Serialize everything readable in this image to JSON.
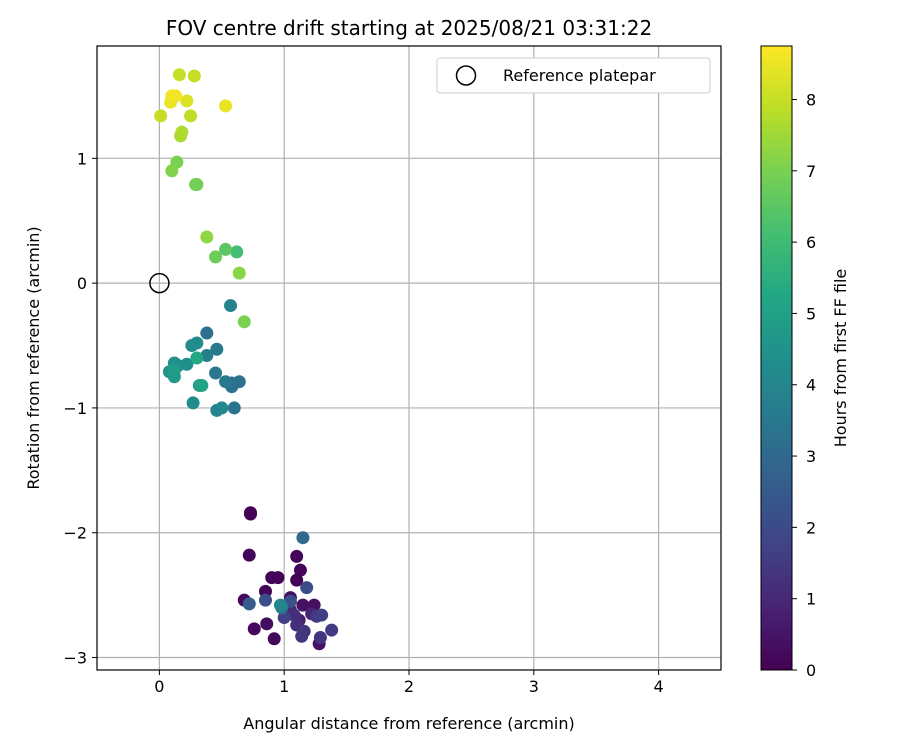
{
  "chart_data": {
    "type": "scatter",
    "title": "FOV centre drift starting at 2025/08/21 03:31:22",
    "xlabel": "Angular distance from reference (arcmin)",
    "ylabel": "Rotation from reference (arcmin)",
    "xlim": [
      -0.5,
      4.5
    ],
    "ylim": [
      -3.1,
      1.9
    ],
    "xticks": [
      0,
      1,
      2,
      3,
      4
    ],
    "yticks": [
      -3,
      -2,
      -1,
      0,
      1
    ],
    "grid": true,
    "legend": {
      "placement": "top-right",
      "entries": [
        "Reference platepar"
      ]
    },
    "colorbar": {
      "label": "Hours from first FF file",
      "min": 0,
      "max": 8.75,
      "ticks": [
        0,
        1,
        2,
        3,
        4,
        5,
        6,
        7,
        8
      ],
      "colormap": "viridis"
    },
    "reference": {
      "x": 0,
      "y": 0,
      "label": "Reference platepar"
    },
    "points": [
      {
        "x": 0.73,
        "y": -1.84,
        "t": 0.05
      },
      {
        "x": 0.73,
        "y": -1.85,
        "t": 0.05
      },
      {
        "x": 0.72,
        "y": -2.18,
        "t": 0.1
      },
      {
        "x": 1.1,
        "y": -2.19,
        "t": 0.1
      },
      {
        "x": 1.13,
        "y": -2.3,
        "t": 0.1
      },
      {
        "x": 1.1,
        "y": -2.38,
        "t": 0.1
      },
      {
        "x": 0.9,
        "y": -2.36,
        "t": 0.1
      },
      {
        "x": 0.95,
        "y": -2.36,
        "t": 0.1
      },
      {
        "x": 0.85,
        "y": -2.47,
        "t": 0.1
      },
      {
        "x": 0.68,
        "y": -2.54,
        "t": 0.2
      },
      {
        "x": 0.76,
        "y": -2.77,
        "t": 0.2
      },
      {
        "x": 0.86,
        "y": -2.73,
        "t": 0.3
      },
      {
        "x": 0.92,
        "y": -2.85,
        "t": 0.2
      },
      {
        "x": 1.05,
        "y": -2.52,
        "t": 0.4
      },
      {
        "x": 1.15,
        "y": -2.58,
        "t": 0.4
      },
      {
        "x": 1.24,
        "y": -2.58,
        "t": 0.4
      },
      {
        "x": 1.28,
        "y": -2.89,
        "t": 0.4
      },
      {
        "x": 1.12,
        "y": -2.7,
        "t": 0.8
      },
      {
        "x": 1.22,
        "y": -2.65,
        "t": 0.9
      },
      {
        "x": 1.05,
        "y": -2.62,
        "t": 1.0
      },
      {
        "x": 1.08,
        "y": -2.66,
        "t": 1.2
      },
      {
        "x": 1.1,
        "y": -2.74,
        "t": 1.2
      },
      {
        "x": 1.16,
        "y": -2.79,
        "t": 1.3
      },
      {
        "x": 1.14,
        "y": -2.83,
        "t": 1.4
      },
      {
        "x": 1.29,
        "y": -2.84,
        "t": 1.4
      },
      {
        "x": 1.38,
        "y": -2.78,
        "t": 1.5
      },
      {
        "x": 1.26,
        "y": -2.67,
        "t": 1.5
      },
      {
        "x": 1.3,
        "y": -2.66,
        "t": 1.6
      },
      {
        "x": 1.0,
        "y": -2.68,
        "t": 1.7
      },
      {
        "x": 1.18,
        "y": -2.44,
        "t": 2.1
      },
      {
        "x": 0.85,
        "y": -2.54,
        "t": 2.1
      },
      {
        "x": 1.05,
        "y": -2.55,
        "t": 2.2
      },
      {
        "x": 0.72,
        "y": -2.57,
        "t": 2.6
      },
      {
        "x": 1.15,
        "y": -2.04,
        "t": 3.0
      },
      {
        "x": 0.98,
        "y": -2.6,
        "t": 3.5
      },
      {
        "x": 0.97,
        "y": -2.58,
        "t": 4.0
      },
      {
        "x": 0.38,
        "y": -0.4,
        "t": 3.2
      },
      {
        "x": 0.58,
        "y": -0.8,
        "t": 3.3
      },
      {
        "x": 0.58,
        "y": -0.83,
        "t": 3.3
      },
      {
        "x": 0.64,
        "y": -0.79,
        "t": 3.3
      },
      {
        "x": 0.6,
        "y": -1.0,
        "t": 3.4
      },
      {
        "x": 0.53,
        "y": -0.79,
        "t": 3.5
      },
      {
        "x": 0.45,
        "y": -0.72,
        "t": 3.5
      },
      {
        "x": 0.46,
        "y": -0.53,
        "t": 3.6
      },
      {
        "x": 0.38,
        "y": -0.58,
        "t": 3.7
      },
      {
        "x": 0.57,
        "y": -0.18,
        "t": 3.9
      },
      {
        "x": 0.46,
        "y": -1.02,
        "t": 4.0
      },
      {
        "x": 0.5,
        "y": -1.0,
        "t": 4.1
      },
      {
        "x": 0.27,
        "y": -0.96,
        "t": 4.2
      },
      {
        "x": 0.26,
        "y": -0.5,
        "t": 4.2
      },
      {
        "x": 0.3,
        "y": -0.48,
        "t": 4.2
      },
      {
        "x": 0.22,
        "y": -0.65,
        "t": 4.3
      },
      {
        "x": 0.15,
        "y": -0.66,
        "t": 4.4
      },
      {
        "x": 0.12,
        "y": -0.64,
        "t": 4.4
      },
      {
        "x": 0.08,
        "y": -0.71,
        "t": 4.5
      },
      {
        "x": 0.12,
        "y": -0.75,
        "t": 4.7
      },
      {
        "x": 0.12,
        "y": -0.7,
        "t": 4.8
      },
      {
        "x": 0.32,
        "y": -0.82,
        "t": 5.0
      },
      {
        "x": 0.34,
        "y": -0.82,
        "t": 5.1
      },
      {
        "x": 0.3,
        "y": -0.6,
        "t": 5.3
      },
      {
        "x": 0.62,
        "y": 0.25,
        "t": 6.1
      },
      {
        "x": 0.53,
        "y": 0.27,
        "t": 6.5
      },
      {
        "x": 0.45,
        "y": 0.21,
        "t": 6.8
      },
      {
        "x": 0.38,
        "y": 0.37,
        "t": 7.3
      },
      {
        "x": 0.64,
        "y": 0.08,
        "t": 7.2
      },
      {
        "x": 0.68,
        "y": -0.31,
        "t": 7.0
      },
      {
        "x": 0.3,
        "y": 0.79,
        "t": 6.9
      },
      {
        "x": 0.29,
        "y": 0.79,
        "t": 6.9
      },
      {
        "x": 0.14,
        "y": 0.97,
        "t": 7.0
      },
      {
        "x": 0.1,
        "y": 0.9,
        "t": 7.1
      },
      {
        "x": 0.17,
        "y": 1.18,
        "t": 7.6
      },
      {
        "x": 0.18,
        "y": 1.21,
        "t": 7.7
      },
      {
        "x": 0.25,
        "y": 1.34,
        "t": 7.9
      },
      {
        "x": 0.01,
        "y": 1.34,
        "t": 8.0
      },
      {
        "x": 0.28,
        "y": 1.66,
        "t": 8.0
      },
      {
        "x": 0.16,
        "y": 1.67,
        "t": 8.0
      },
      {
        "x": 0.22,
        "y": 1.46,
        "t": 8.3
      },
      {
        "x": 0.09,
        "y": 1.45,
        "t": 8.5
      },
      {
        "x": 0.1,
        "y": 1.5,
        "t": 8.6
      },
      {
        "x": 0.13,
        "y": 1.5,
        "t": 8.6
      },
      {
        "x": 0.53,
        "y": 1.42,
        "t": 8.5
      }
    ]
  }
}
